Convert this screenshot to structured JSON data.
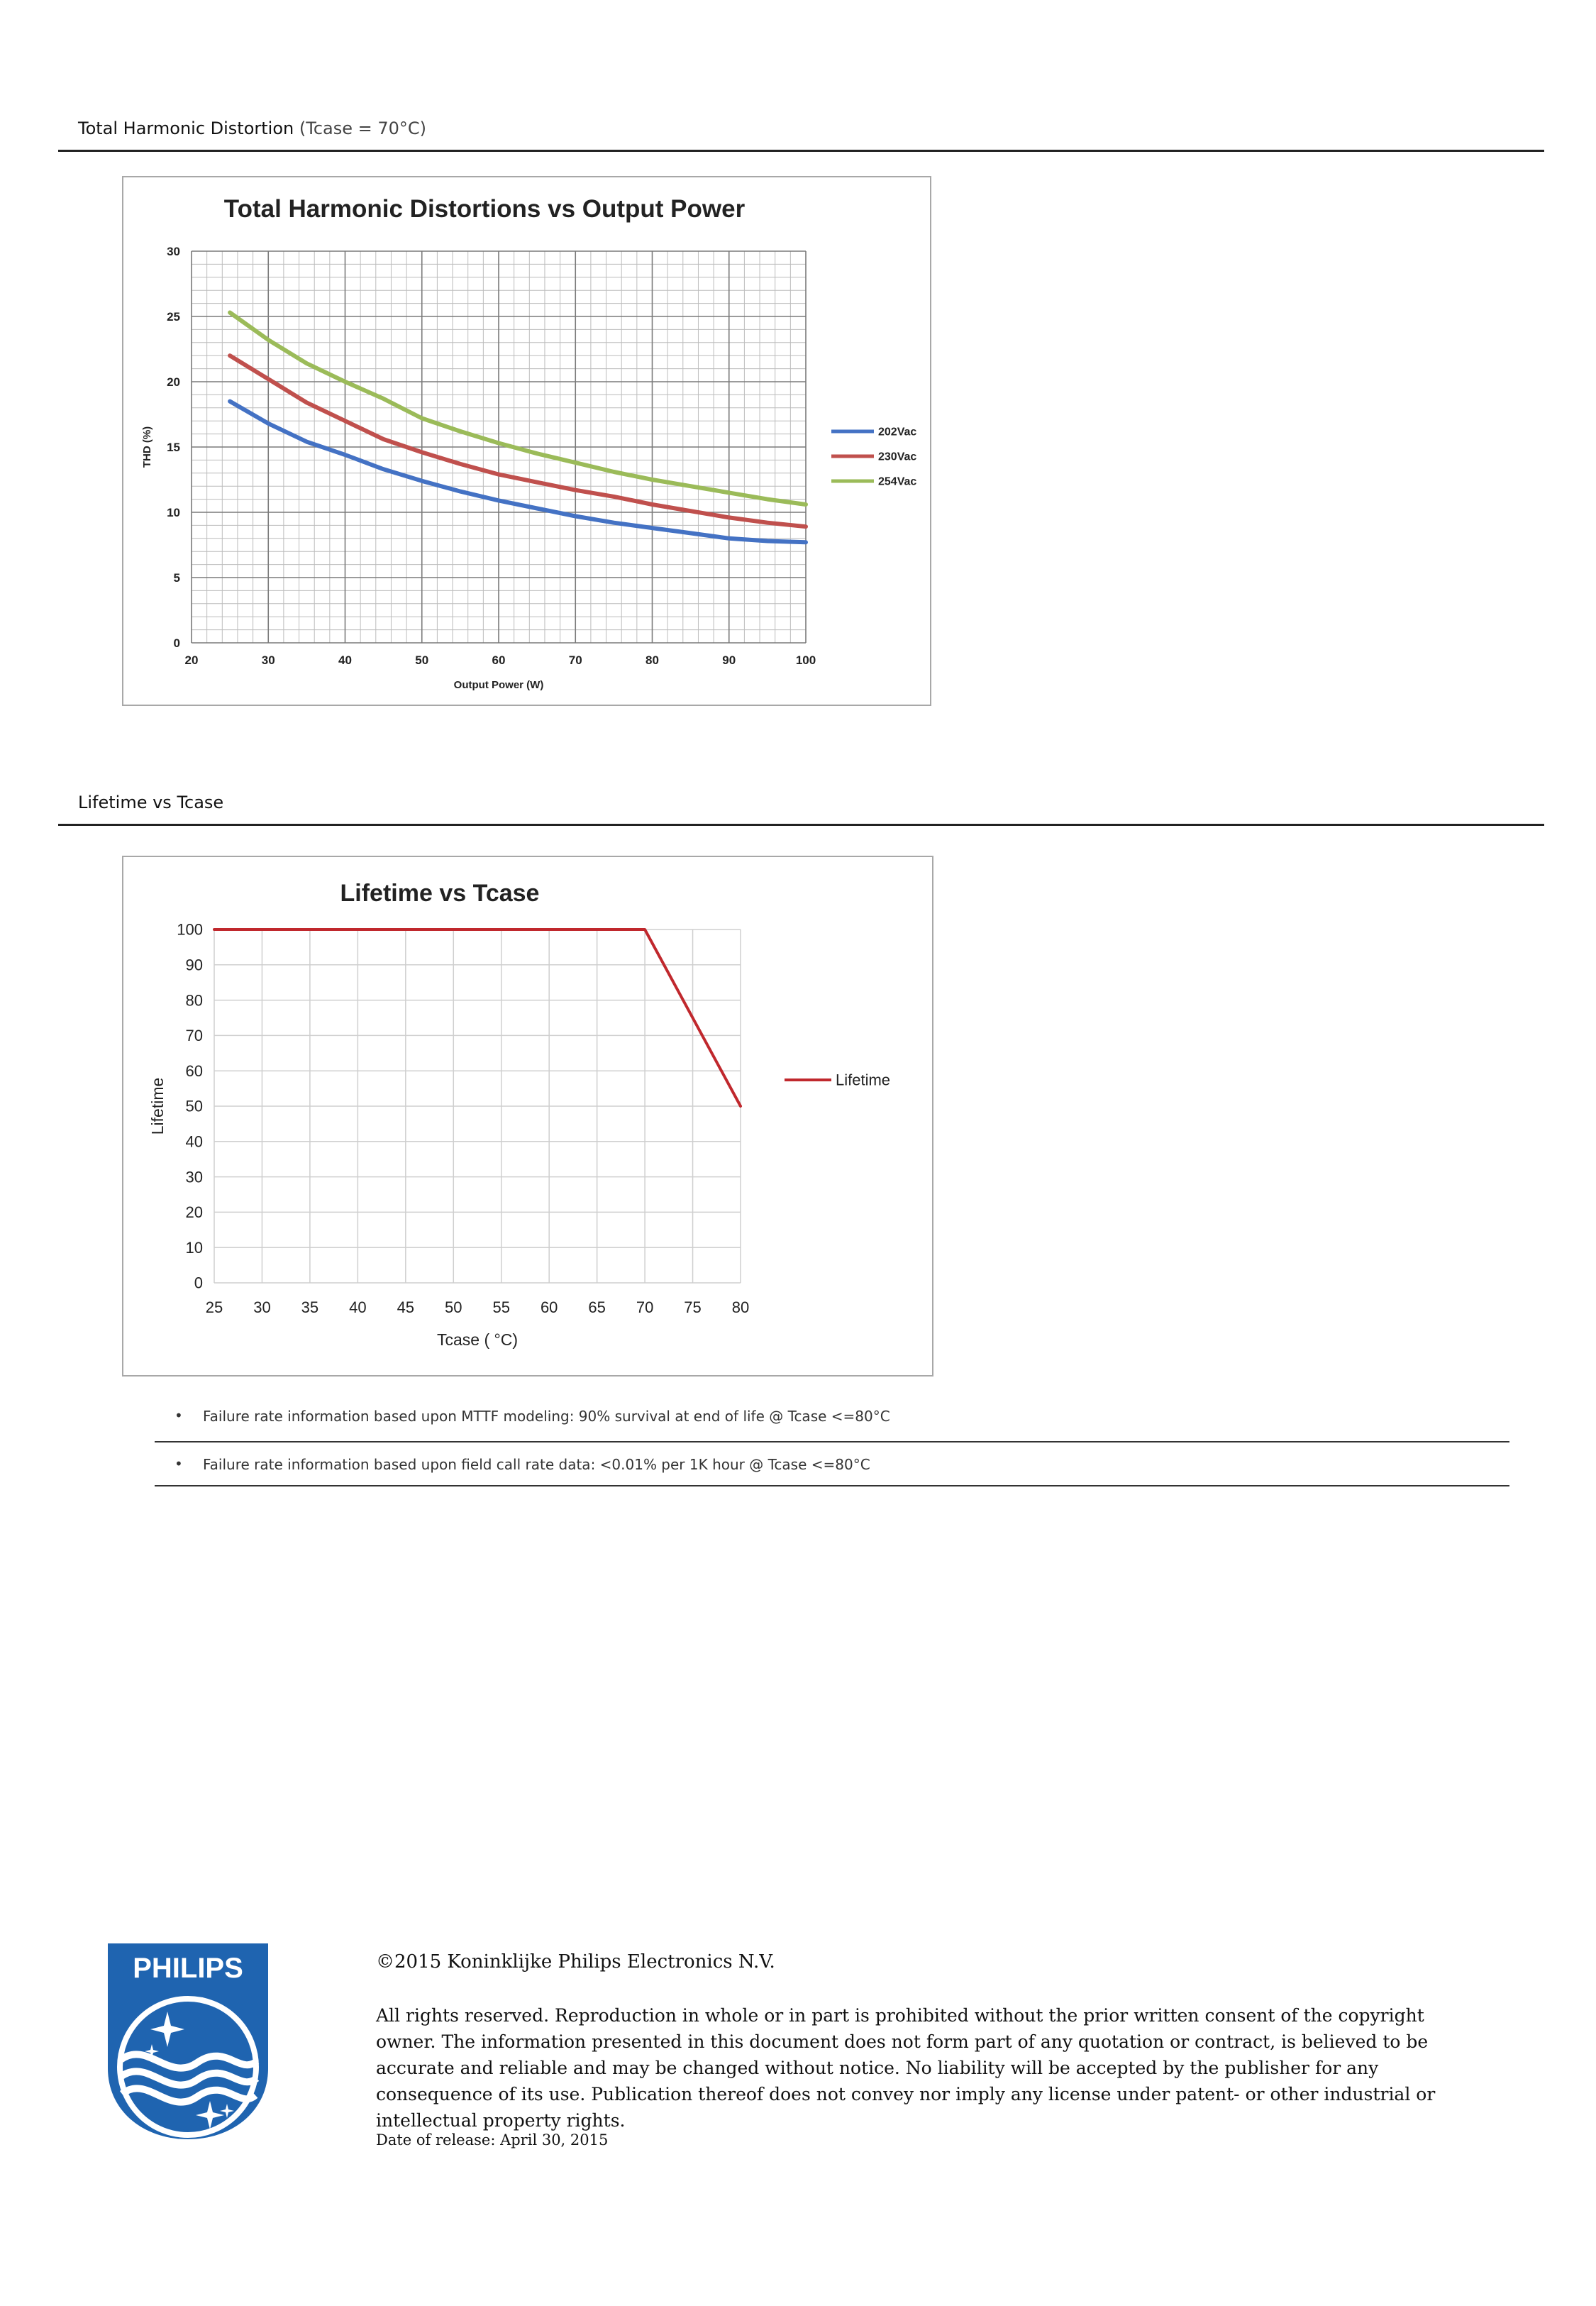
{
  "sections": {
    "thd": {
      "title": "Total Harmonic Distortion",
      "title_suffix": "(Tcase = 70°C)"
    },
    "lifetime": {
      "title": "Lifetime vs Tcase"
    }
  },
  "chart_data": [
    {
      "type": "line",
      "title": "Total Harmonic Distortions vs Output Power",
      "xlabel": "Output Power (W)",
      "ylabel": "THD (%)",
      "xlim": [
        20,
        100
      ],
      "ylim": [
        0,
        30
      ],
      "x_ticks": [
        20,
        30,
        40,
        50,
        60,
        70,
        80,
        90,
        100
      ],
      "y_ticks": [
        0,
        5,
        10,
        15,
        20,
        25,
        30
      ],
      "grid": true,
      "legend_position": "right",
      "x": [
        25,
        30,
        35,
        40,
        45,
        50,
        55,
        60,
        65,
        70,
        75,
        80,
        85,
        90,
        95,
        100
      ],
      "series": [
        {
          "name": "202Vac",
          "color": "#4472c4",
          "values": [
            18.5,
            16.8,
            15.4,
            14.4,
            13.3,
            12.4,
            11.6,
            10.9,
            10.3,
            9.7,
            9.2,
            8.8,
            8.4,
            8.0,
            7.8,
            7.7
          ]
        },
        {
          "name": "230Vac",
          "color": "#c0504d",
          "values": [
            22.0,
            20.2,
            18.4,
            17.0,
            15.6,
            14.6,
            13.7,
            12.9,
            12.3,
            11.7,
            11.2,
            10.6,
            10.1,
            9.6,
            9.2,
            8.9
          ]
        },
        {
          "name": "254Vac",
          "color": "#9bbb59",
          "values": [
            25.3,
            23.2,
            21.4,
            20.0,
            18.7,
            17.2,
            16.2,
            15.3,
            14.5,
            13.8,
            13.1,
            12.5,
            12.0,
            11.5,
            11.0,
            10.6
          ]
        }
      ]
    },
    {
      "type": "line",
      "title": "Lifetime vs Tcase",
      "xlabel": "Tcase ( °C)",
      "ylabel": "Lifetime",
      "xlim": [
        25,
        80
      ],
      "ylim": [
        0,
        100
      ],
      "x_ticks": [
        25,
        30,
        35,
        40,
        45,
        50,
        55,
        60,
        65,
        70,
        75,
        80
      ],
      "y_ticks": [
        0,
        10,
        20,
        30,
        40,
        50,
        60,
        70,
        80,
        90,
        100
      ],
      "grid": true,
      "legend_position": "right",
      "x": [
        25,
        70,
        80
      ],
      "series": [
        {
          "name": "Lifetime",
          "color": "#c0282d",
          "values": [
            100,
            100,
            50
          ]
        }
      ]
    }
  ],
  "notes": [
    "Failure rate information based upon MTTF modeling: 90% survival at end of life @ Tcase <=80°C",
    "Failure rate information based upon field call rate data: <0.01% per 1K hour @ Tcase <=80°C"
  ],
  "bullet_char": "•",
  "footer": {
    "logo_text": "PHILIPS",
    "copyright": "©2015 Koninklijke Philips Electronics N.V.",
    "rights": "All rights reserved. Reproduction in whole or in part is prohibited without the prior written consent of the copyright owner. The information presented in this document does not form part of any quotation or contract, is believed to be accurate and reliable and may be changed without notice. No liability will be accepted by the publisher for any consequence of its use. Publication thereof does not convey nor imply any license under patent- or other industrial or intellectual property rights.",
    "release": "Date of release: April 30, 2015"
  },
  "colors": {
    "philips_blue": "#1f64b0",
    "grid": "#c8c8c8"
  }
}
